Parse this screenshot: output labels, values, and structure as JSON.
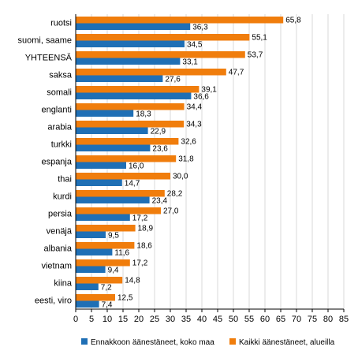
{
  "chart_data": {
    "type": "bar",
    "orientation": "horizontal",
    "categories": [
      "ruotsi",
      "suomi, saame",
      "YHTEENSÄ",
      "saksa",
      "somali",
      "englanti",
      "arabia",
      "turkki",
      "espanja",
      "thai",
      "kurdi",
      "persia",
      "venäjä",
      "albania",
      "vietnam",
      "kiina",
      "eesti, viro"
    ],
    "series": [
      {
        "name": "Ennakkoon äänestäneet, koko maa",
        "color": "#1f6fb5",
        "values": [
          36.3,
          34.5,
          33.1,
          27.6,
          36.6,
          18.3,
          22.9,
          23.6,
          16.0,
          14.7,
          23.4,
          17.2,
          9.5,
          11.6,
          9.4,
          7.2,
          7.4
        ],
        "labels": [
          "36,3",
          "34,5",
          "33,1",
          "27,6",
          "36,6",
          "18,3",
          "22,9",
          "23,6",
          "16,0",
          "14,7",
          "23,4",
          "17,2",
          "9,5",
          "11,6",
          "9,4",
          "7,2",
          "7,4"
        ]
      },
      {
        "name": "Kaikki äänestäneet, alueilla",
        "color": "#f07d0c",
        "values": [
          65.8,
          55.1,
          53.7,
          47.7,
          39.1,
          34.4,
          34.3,
          32.6,
          31.8,
          30.0,
          28.2,
          27.0,
          18.9,
          18.6,
          17.2,
          14.8,
          12.5
        ],
        "labels": [
          "65,8",
          "55,1",
          "53,7",
          "47,7",
          "39,1",
          "34,4",
          "34,3",
          "32,6",
          "31,8",
          "30,0",
          "28,2",
          "27,0",
          "18,9",
          "18,6",
          "17,2",
          "14,8",
          "12,5"
        ]
      }
    ],
    "xlim": [
      0,
      85
    ],
    "xticks": [
      "0",
      "5",
      "10",
      "15",
      "20",
      "25",
      "30",
      "35",
      "40",
      "45",
      "50",
      "55",
      "60",
      "65",
      "70",
      "75",
      "80",
      "85"
    ],
    "grid": "vertical",
    "gridColor": "#d9d9d9",
    "legend": "bottom"
  }
}
